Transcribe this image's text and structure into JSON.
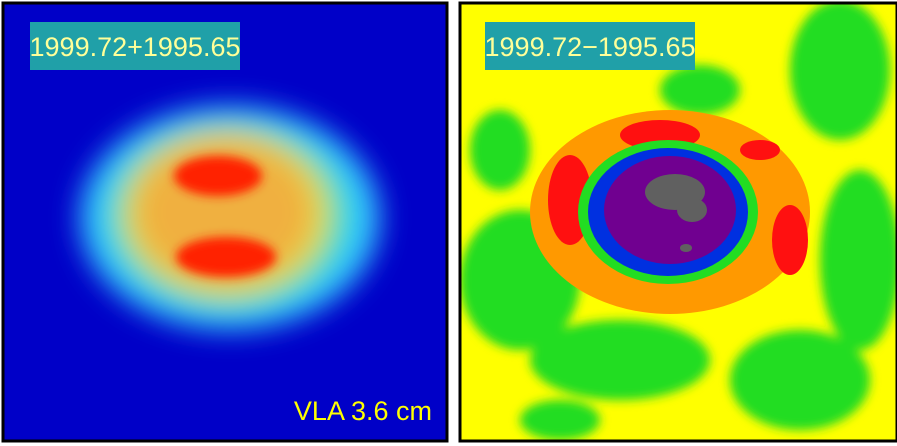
{
  "panels": [
    {
      "label": "1999.72+1995.65",
      "caption": "VLA 3.6 cm"
    },
    {
      "label": "1999.72−1995.65"
    }
  ]
}
